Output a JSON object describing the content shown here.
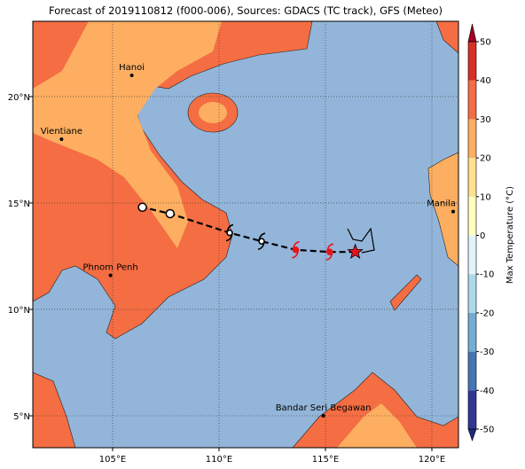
{
  "title": "Forecast of 2019110812 (f000-006), Sources: GDACS (TC track), GFS (Meteo)",
  "map": {
    "lon_range": [
      101.25,
      121.25
    ],
    "lat_range": [
      3.5,
      23.54
    ],
    "lon_ticks": [
      {
        "value": 105,
        "label": "105°E"
      },
      {
        "value": 110,
        "label": "110°E"
      },
      {
        "value": 115,
        "label": "115°E"
      },
      {
        "value": 120,
        "label": "120°E"
      }
    ],
    "lat_ticks": [
      {
        "value": 5,
        "label": "5°N"
      },
      {
        "value": 10,
        "label": "10°N"
      },
      {
        "value": 15,
        "label": "15°N"
      },
      {
        "value": 20,
        "label": "20°N"
      }
    ],
    "grid": true,
    "cities": [
      {
        "name": "Hanoi",
        "lon": 105.9,
        "lat": 21.0
      },
      {
        "name": "Vientiane",
        "lon": 102.6,
        "lat": 18.0
      },
      {
        "name": "Manila",
        "lon": 121.0,
        "lat": 14.6
      },
      {
        "name": "Phnom Penh",
        "lon": 104.9,
        "lat": 11.6
      },
      {
        "name": "Bandar Seri Begawan",
        "lon": 114.9,
        "lat": 5.0
      }
    ],
    "track": [
      {
        "lon": 116.4,
        "lat": 12.7,
        "marker": "star",
        "color": "#e8141c"
      },
      {
        "lon": 115.2,
        "lat": 12.7,
        "marker": "cyclone",
        "color": "#e8141c"
      },
      {
        "lon": 113.6,
        "lat": 12.8,
        "marker": "cyclone",
        "color": "#e8141c"
      },
      {
        "lon": 112.0,
        "lat": 13.2,
        "marker": "cyclone",
        "color": "#000000"
      },
      {
        "lon": 110.5,
        "lat": 13.6,
        "marker": "cyclone",
        "color": "#000000"
      },
      {
        "lon": 107.7,
        "lat": 14.5,
        "marker": "circle",
        "color": "#000000"
      },
      {
        "lon": 106.4,
        "lat": 14.8,
        "marker": "circle",
        "color": "#000000"
      }
    ]
  },
  "colorbar": {
    "label": "Max Temperature (°C)",
    "ticks": [
      -50,
      -40,
      -30,
      -20,
      -10,
      0,
      10,
      20,
      30,
      40,
      50
    ],
    "colors": [
      "#313695",
      "#4575b4",
      "#74add1",
      "#abd9e9",
      "#e0f3f8",
      "#ffffbf",
      "#fee090",
      "#fdae61",
      "#f46d43",
      "#d73027"
    ],
    "under_color": "#1f2a80",
    "over_color": "#a50026"
  }
}
